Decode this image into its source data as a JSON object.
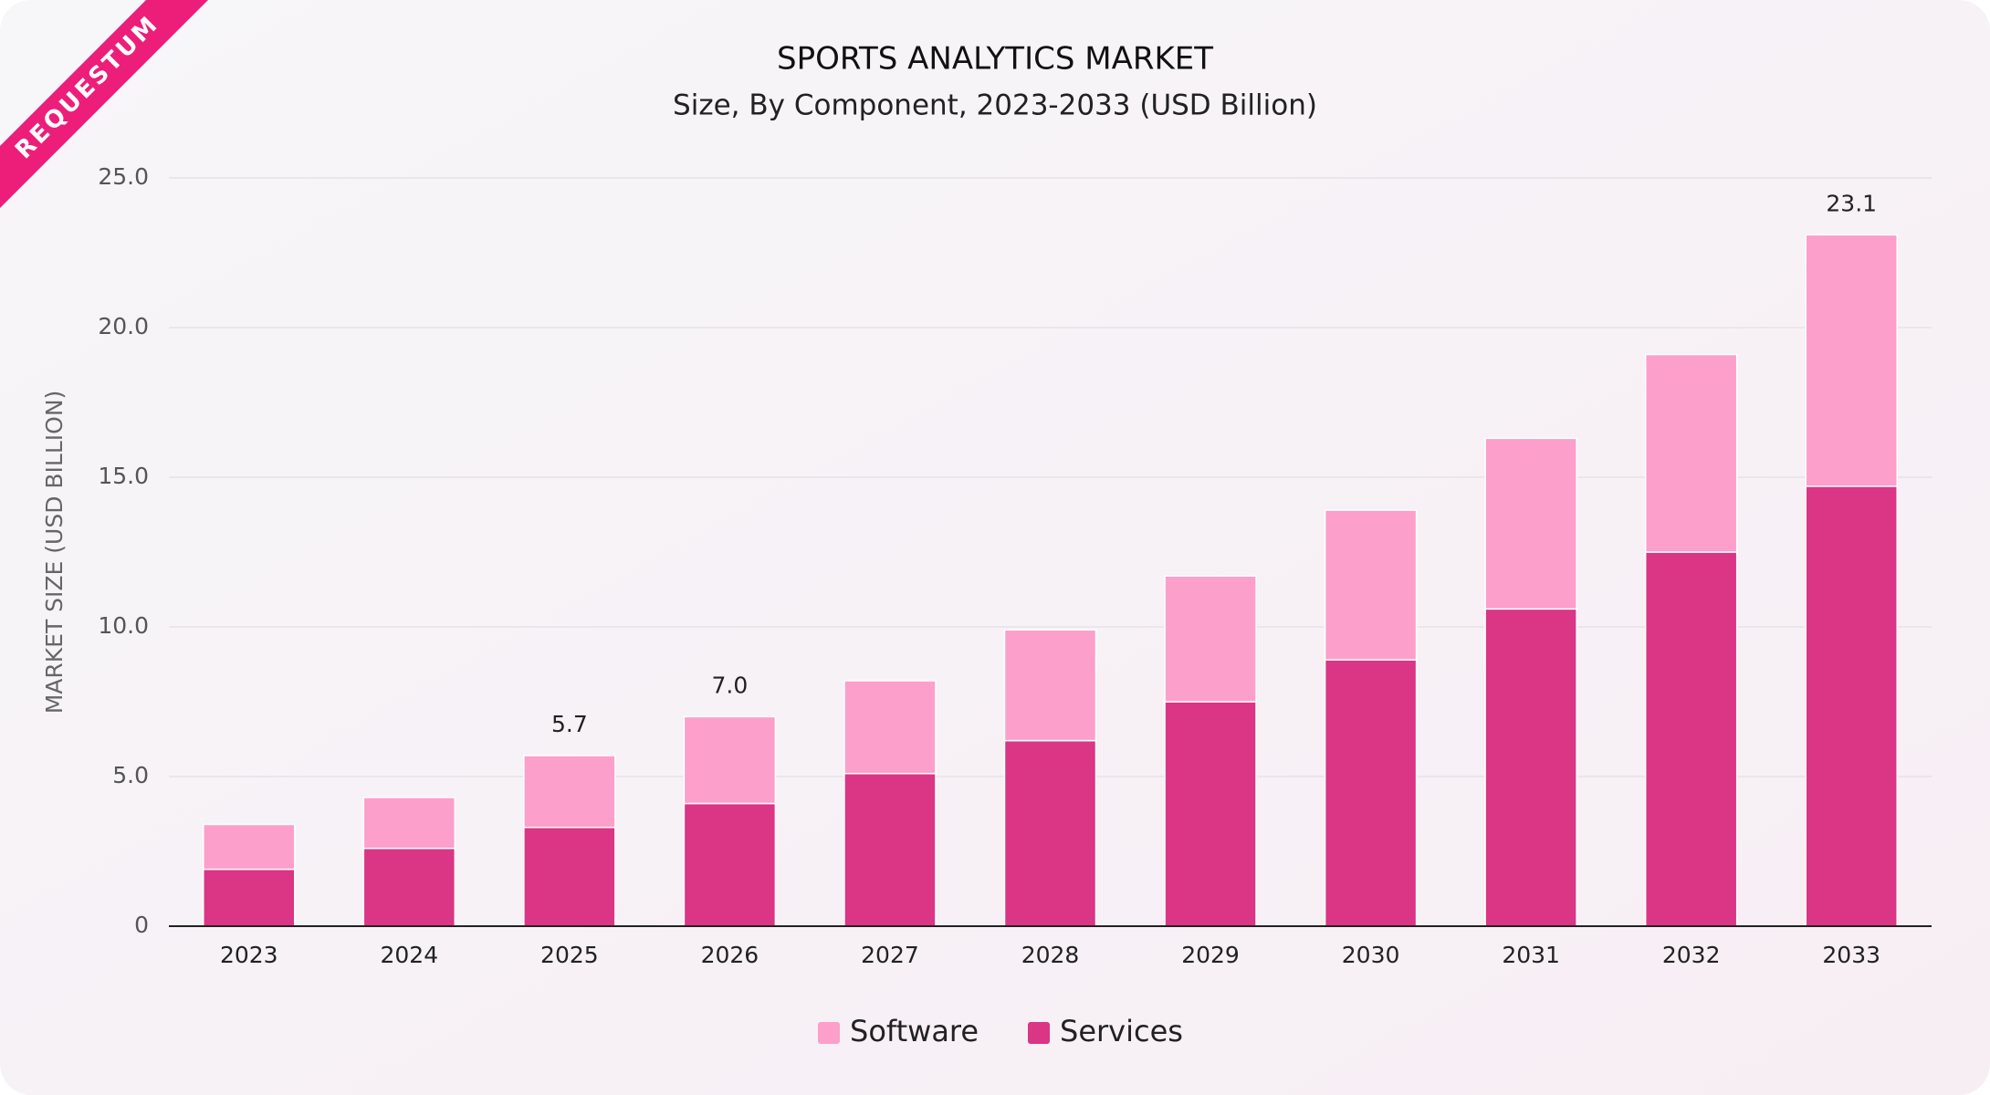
{
  "brand": "REQUESTUM",
  "chart_data": {
    "type": "stacked-bar",
    "title": "SPORTS ANALYTICS MARKET",
    "subtitle": "Size, By Component, 2023-2033 (USD Billion)",
    "y_label": "MARKET SIZE (USD BILLION)",
    "categories": [
      "2023",
      "2024",
      "2025",
      "2026",
      "2027",
      "2028",
      "2029",
      "2030",
      "2031",
      "2032",
      "2033"
    ],
    "series": [
      {
        "name": "Services",
        "color": "#db3585",
        "values": [
          1.9,
          2.6,
          3.3,
          4.1,
          5.1,
          6.2,
          7.5,
          8.9,
          10.6,
          12.5,
          14.7
        ]
      },
      {
        "name": "Software",
        "color": "#fc9fcb",
        "values": [
          1.5,
          1.7,
          2.4,
          2.9,
          3.1,
          3.7,
          4.2,
          5.0,
          5.7,
          6.6,
          8.4
        ]
      }
    ],
    "total_labels": [
      null,
      null,
      "5.7",
      "7.0",
      null,
      null,
      null,
      null,
      null,
      null,
      "23.1"
    ],
    "ylim": [
      0,
      25
    ],
    "yticks": [
      0,
      {
        "value": 5,
        "label": "5.0"
      },
      {
        "value": 10,
        "label": "10.0"
      },
      {
        "value": 15,
        "label": "15.0"
      },
      {
        "value": 20,
        "label": "20.0"
      },
      {
        "value": 25,
        "label": "25.0"
      }
    ],
    "grid": true,
    "legend": "bottom"
  }
}
